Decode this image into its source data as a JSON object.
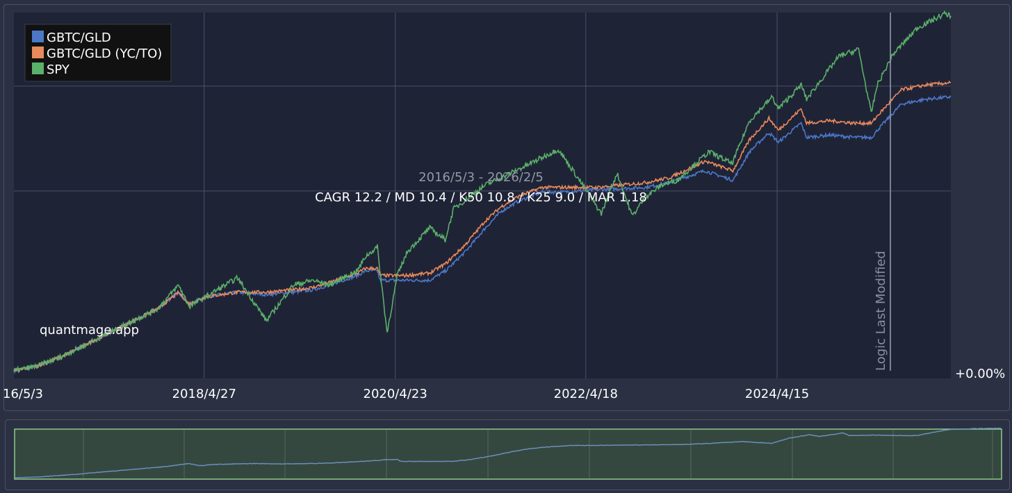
{
  "chart_data": {
    "type": "line",
    "x_ticks": [
      "16/5/3",
      "2018/4/27",
      "2020/4/23",
      "2022/4/18",
      "2024/4/15"
    ],
    "y_axis_label_right": "+0.00%",
    "grid": true,
    "legend_placement": "top-left",
    "date_range_text": "2016/5/3 - 2026/2/5",
    "stats_text": "CAGR 12.2 / MD 10.4 / K50 10.8 / K25 9.0 / MAR 1.18",
    "watermark": "quantmage.app",
    "marker": {
      "label": "Logic Last Modified",
      "date": "2025-06-20"
    },
    "series": [
      {
        "name": "GBTC/GLD",
        "color": "#4c78c8",
        "points": [
          [
            "2016-05-03",
            0
          ],
          [
            "2016-08-01",
            2
          ],
          [
            "2016-11-01",
            6
          ],
          [
            "2017-02-01",
            11
          ],
          [
            "2017-05-01",
            16
          ],
          [
            "2017-08-01",
            21
          ],
          [
            "2017-11-01",
            26
          ],
          [
            "2018-01-20",
            33
          ],
          [
            "2018-03-01",
            28
          ],
          [
            "2018-05-01",
            31
          ],
          [
            "2018-09-01",
            33
          ],
          [
            "2018-12-20",
            32
          ],
          [
            "2019-04-01",
            33
          ],
          [
            "2019-06-15",
            34
          ],
          [
            "2019-08-15",
            36
          ],
          [
            "2019-12-01",
            40
          ],
          [
            "2020-01-01",
            42
          ],
          [
            "2020-02-15",
            42
          ],
          [
            "2020-02-25",
            38
          ],
          [
            "2020-03-05",
            38
          ],
          [
            "2020-06-01",
            38
          ],
          [
            "2020-09-01",
            38
          ],
          [
            "2020-11-01",
            42
          ],
          [
            "2021-01-15",
            50
          ],
          [
            "2021-04-01",
            60
          ],
          [
            "2021-06-01",
            67
          ],
          [
            "2021-08-01",
            71
          ],
          [
            "2021-11-01",
            75
          ],
          [
            "2022-01-15",
            75
          ],
          [
            "2022-06-01",
            76
          ],
          [
            "2022-12-01",
            77
          ],
          [
            "2023-03-01",
            79
          ],
          [
            "2023-07-15",
            84
          ],
          [
            "2023-10-30",
            80
          ],
          [
            "2024-01-01",
            92
          ],
          [
            "2024-03-15",
            100
          ],
          [
            "2024-04-20",
            96
          ],
          [
            "2024-07-15",
            104
          ],
          [
            "2024-08-05",
            98
          ],
          [
            "2024-11-01",
            99
          ],
          [
            "2025-02-01",
            98
          ],
          [
            "2025-04-10",
            98
          ],
          [
            "2025-05-01",
            101
          ],
          [
            "2025-08-01",
            112
          ],
          [
            "2025-11-01",
            114
          ],
          [
            "2026-02-05",
            115
          ]
        ]
      },
      {
        "name": "GBTC/GLD (YC/TO)",
        "color": "#e88a5c",
        "points": [
          [
            "2016-05-03",
            0
          ],
          [
            "2016-08-01",
            2
          ],
          [
            "2016-11-01",
            6
          ],
          [
            "2017-02-01",
            11
          ],
          [
            "2017-05-01",
            16
          ],
          [
            "2017-08-01",
            21
          ],
          [
            "2017-11-01",
            26
          ],
          [
            "2018-01-20",
            33
          ],
          [
            "2018-03-01",
            28
          ],
          [
            "2018-05-01",
            31
          ],
          [
            "2018-09-01",
            33
          ],
          [
            "2018-12-20",
            33
          ],
          [
            "2019-04-01",
            34
          ],
          [
            "2019-06-15",
            35
          ],
          [
            "2019-08-15",
            37
          ],
          [
            "2019-12-01",
            41
          ],
          [
            "2020-01-01",
            43
          ],
          [
            "2020-02-15",
            43
          ],
          [
            "2020-02-25",
            40
          ],
          [
            "2020-03-05",
            40
          ],
          [
            "2020-06-01",
            40
          ],
          [
            "2020-09-01",
            41
          ],
          [
            "2020-11-01",
            45
          ],
          [
            "2021-01-15",
            53
          ],
          [
            "2021-04-01",
            63
          ],
          [
            "2021-06-01",
            69
          ],
          [
            "2021-08-01",
            73
          ],
          [
            "2021-11-01",
            77
          ],
          [
            "2022-01-15",
            77
          ],
          [
            "2022-06-01",
            77
          ],
          [
            "2022-12-01",
            79
          ],
          [
            "2023-03-01",
            81
          ],
          [
            "2023-07-15",
            88
          ],
          [
            "2023-10-30",
            84
          ],
          [
            "2024-01-01",
            97
          ],
          [
            "2024-03-15",
            106
          ],
          [
            "2024-04-20",
            101
          ],
          [
            "2024-07-15",
            110
          ],
          [
            "2024-08-05",
            104
          ],
          [
            "2024-11-01",
            105
          ],
          [
            "2025-02-01",
            104
          ],
          [
            "2025-04-10",
            104
          ],
          [
            "2025-05-01",
            107
          ],
          [
            "2025-08-01",
            118
          ],
          [
            "2025-11-01",
            120
          ],
          [
            "2026-02-05",
            121
          ]
        ]
      },
      {
        "name": "SPY",
        "color": "#5bb06a",
        "points": [
          [
            "2016-05-03",
            0
          ],
          [
            "2016-08-01",
            2
          ],
          [
            "2016-11-01",
            6
          ],
          [
            "2017-02-01",
            11
          ],
          [
            "2017-05-01",
            16
          ],
          [
            "2017-08-01",
            21
          ],
          [
            "2017-11-01",
            26
          ],
          [
            "2018-01-20",
            36
          ],
          [
            "2018-03-01",
            27
          ],
          [
            "2018-05-01",
            31
          ],
          [
            "2018-09-01",
            39
          ],
          [
            "2018-12-20",
            21
          ],
          [
            "2019-04-01",
            36
          ],
          [
            "2019-06-15",
            38
          ],
          [
            "2019-08-15",
            36
          ],
          [
            "2019-12-01",
            42
          ],
          [
            "2020-01-01",
            48
          ],
          [
            "2020-02-15",
            52
          ],
          [
            "2020-03-23",
            16
          ],
          [
            "2020-05-01",
            40
          ],
          [
            "2020-06-08",
            50
          ],
          [
            "2020-09-01",
            60
          ],
          [
            "2020-10-30",
            55
          ],
          [
            "2020-12-01",
            68
          ],
          [
            "2021-04-01",
            78
          ],
          [
            "2021-09-01",
            86
          ],
          [
            "2022-01-03",
            93
          ],
          [
            "2022-03-01",
            84
          ],
          [
            "2022-06-16",
            66
          ],
          [
            "2022-08-15",
            83
          ],
          [
            "2022-10-12",
            65
          ],
          [
            "2022-12-01",
            73
          ],
          [
            "2023-02-01",
            78
          ],
          [
            "2023-04-01",
            80
          ],
          [
            "2023-07-31",
            92
          ],
          [
            "2023-10-27",
            87
          ],
          [
            "2024-01-01",
            105
          ],
          [
            "2024-03-28",
            115
          ],
          [
            "2024-04-19",
            110
          ],
          [
            "2024-07-16",
            120
          ],
          [
            "2024-08-05",
            114
          ],
          [
            "2024-12-06",
            132
          ],
          [
            "2025-02-19",
            135
          ],
          [
            "2025-04-08",
            108
          ],
          [
            "2025-05-01",
            120
          ],
          [
            "2025-07-01",
            133
          ],
          [
            "2025-10-01",
            144
          ],
          [
            "2026-01-15",
            150
          ],
          [
            "2026-02-05",
            149
          ]
        ]
      }
    ],
    "navigator_series": "GBTC/GLD"
  }
}
